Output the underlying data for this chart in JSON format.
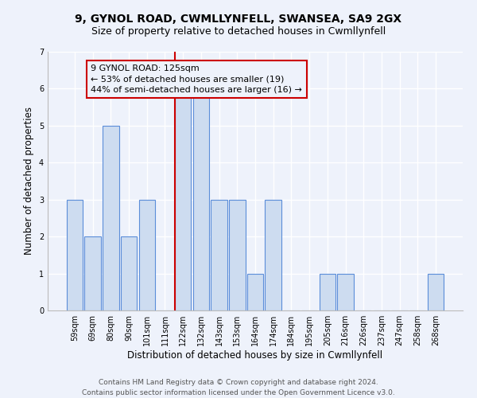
{
  "title1": "9, GYNOL ROAD, CWMLLYNFELL, SWANSEA, SA9 2GX",
  "title2": "Size of property relative to detached houses in Cwmllynfell",
  "xlabel": "Distribution of detached houses by size in Cwmllynfell",
  "ylabel": "Number of detached properties",
  "bar_labels": [
    "59sqm",
    "69sqm",
    "80sqm",
    "90sqm",
    "101sqm",
    "111sqm",
    "122sqm",
    "132sqm",
    "143sqm",
    "153sqm",
    "164sqm",
    "174sqm",
    "184sqm",
    "195sqm",
    "205sqm",
    "216sqm",
    "226sqm",
    "237sqm",
    "247sqm",
    "258sqm",
    "268sqm"
  ],
  "bar_values": [
    3,
    2,
    5,
    2,
    3,
    0,
    6,
    6,
    3,
    3,
    1,
    3,
    0,
    0,
    1,
    1,
    0,
    0,
    0,
    0,
    1
  ],
  "bar_color": "#cddcf0",
  "bar_edge_color": "#5b8dd9",
  "vline_x_index": 6,
  "vline_color": "#cc0000",
  "annotation_text": "9 GYNOL ROAD: 125sqm\n← 53% of detached houses are smaller (19)\n44% of semi-detached houses are larger (16) →",
  "ylim": [
    0,
    7
  ],
  "yticks": [
    0,
    1,
    2,
    3,
    4,
    5,
    6,
    7
  ],
  "footer1": "Contains HM Land Registry data © Crown copyright and database right 2024.",
  "footer2": "Contains public sector information licensed under the Open Government Licence v3.0.",
  "bg_color": "#eef2fb",
  "grid_color": "#ffffff",
  "title1_fontsize": 10,
  "title2_fontsize": 9,
  "xlabel_fontsize": 8.5,
  "ylabel_fontsize": 8.5,
  "tick_fontsize": 7,
  "annotation_fontsize": 8,
  "footer_fontsize": 6.5
}
